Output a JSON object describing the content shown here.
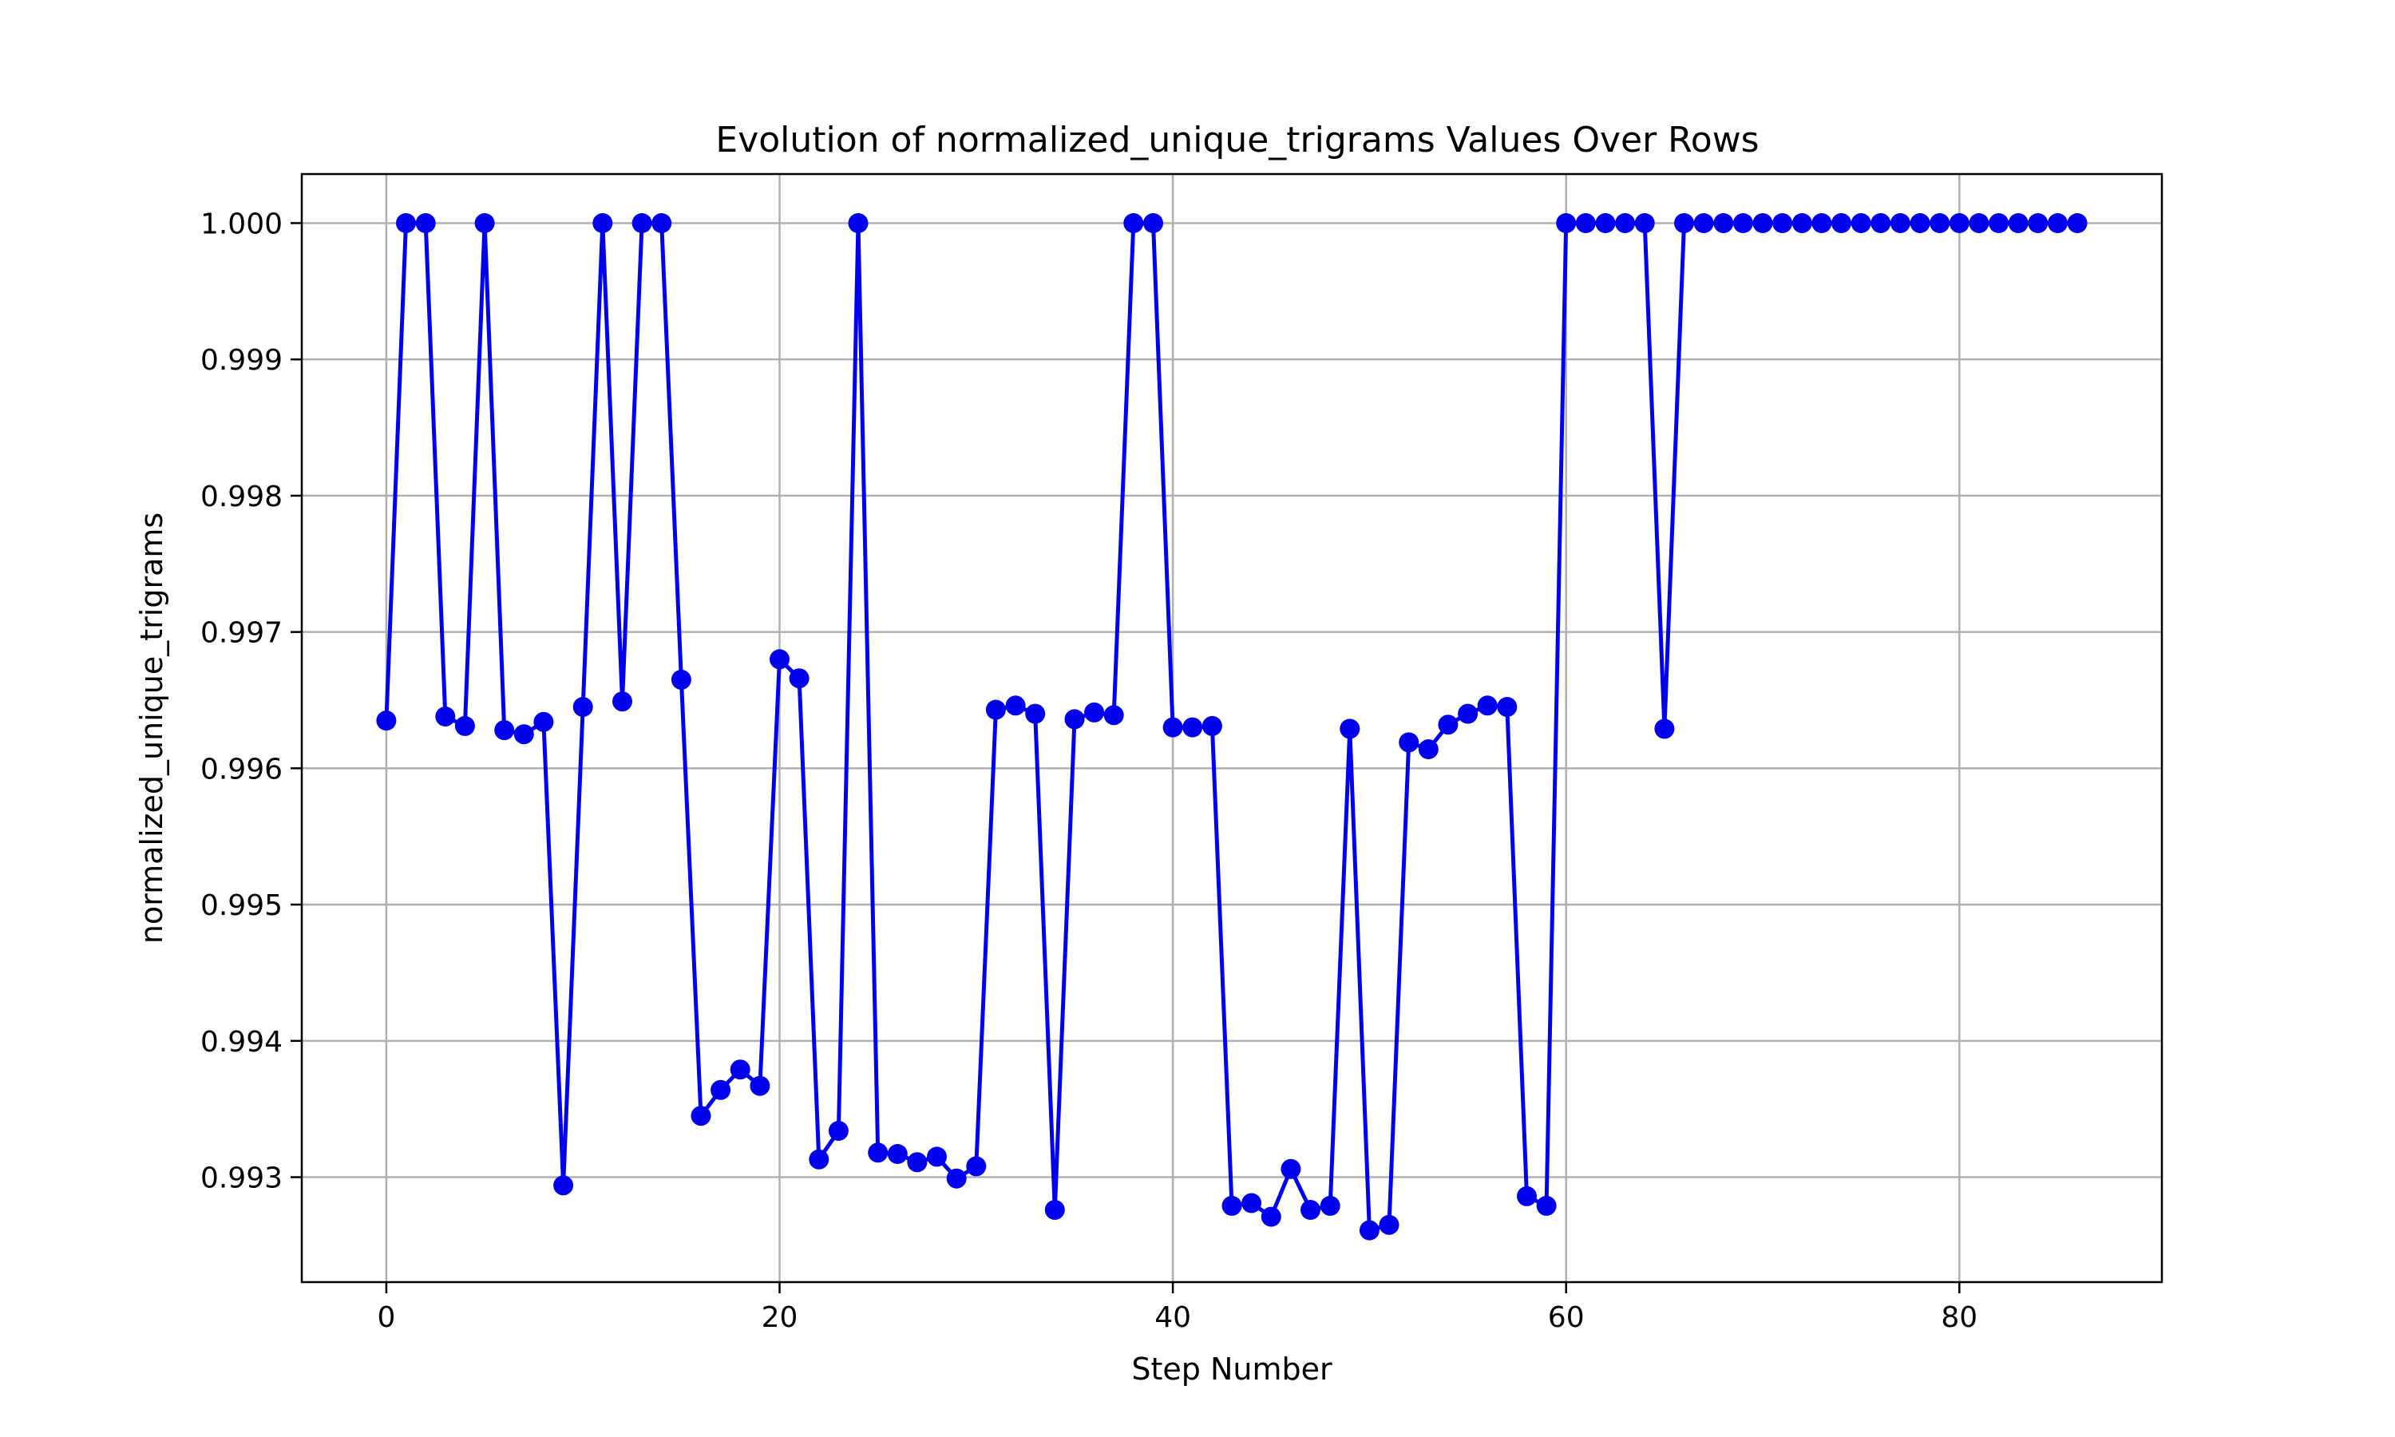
{
  "chart_data": {
    "type": "line",
    "title": "Evolution of normalized_unique_trigrams Values Over Rows",
    "xlabel": "Step Number",
    "ylabel": "normalized_unique_trigrams",
    "xlim": [
      -4.3,
      90.3
    ],
    "ylim": [
      0.99223,
      1.00036
    ],
    "xticks": [
      0,
      20,
      40,
      60,
      80
    ],
    "xtick_labels": [
      "0",
      "20",
      "40",
      "60",
      "80"
    ],
    "yticks": [
      0.993,
      0.994,
      0.995,
      0.996,
      0.997,
      0.998,
      0.999,
      1.0
    ],
    "ytick_labels": [
      "0.993",
      "0.994",
      "0.995",
      "0.996",
      "0.997",
      "0.998",
      "0.999",
      "1.000"
    ],
    "grid": true,
    "line_color": "#0000ee",
    "series": [
      {
        "x": [
          0,
          1,
          2,
          3,
          4,
          5,
          6,
          7,
          8,
          9,
          10,
          11,
          12,
          13,
          14,
          15,
          16,
          17,
          18,
          19,
          20,
          21,
          22,
          23,
          24,
          25,
          26,
          27,
          28,
          29,
          30,
          31,
          32,
          33,
          34,
          35,
          36,
          37,
          38,
          39,
          40,
          41,
          42,
          43,
          44,
          45,
          46,
          47,
          48,
          49,
          50,
          51,
          52,
          53,
          54,
          55,
          56,
          57,
          58,
          59,
          60,
          61,
          62,
          63,
          64,
          65,
          66,
          67,
          68,
          69,
          70,
          71,
          72,
          73,
          74,
          75,
          76,
          77,
          78,
          79,
          80,
          81,
          82,
          83,
          84,
          85,
          86
        ],
        "values": [
          0.99635,
          1.0,
          1.0,
          0.99638,
          0.99631,
          1.0,
          0.99628,
          0.99625,
          0.99634,
          0.99294,
          0.99645,
          1.0,
          0.99649,
          1.0,
          1.0,
          0.99665,
          0.99345,
          0.99364,
          0.99379,
          0.99367,
          0.9968,
          0.99666,
          0.99313,
          0.99334,
          1.0,
          0.99318,
          0.99317,
          0.99311,
          0.99315,
          0.99299,
          0.99308,
          0.99643,
          0.99646,
          0.9964,
          0.99276,
          0.99636,
          0.99641,
          0.99639,
          1.0,
          1.0,
          0.9963,
          0.9963,
          0.99631,
          0.99279,
          0.99281,
          0.99271,
          0.99306,
          0.99276,
          0.99279,
          0.99629,
          0.99261,
          0.99265,
          0.99619,
          0.99614,
          0.99632,
          0.9964,
          0.99646,
          0.99645,
          0.99286,
          0.99279,
          1.0,
          1.0,
          1.0,
          1.0,
          1.0,
          0.99629,
          1.0,
          1.0,
          1.0,
          1.0,
          1.0,
          1.0,
          1.0,
          1.0,
          1.0,
          1.0,
          1.0,
          1.0,
          1.0,
          1.0,
          1.0,
          1.0,
          1.0,
          1.0,
          1.0,
          1.0,
          1.0
        ]
      }
    ]
  }
}
